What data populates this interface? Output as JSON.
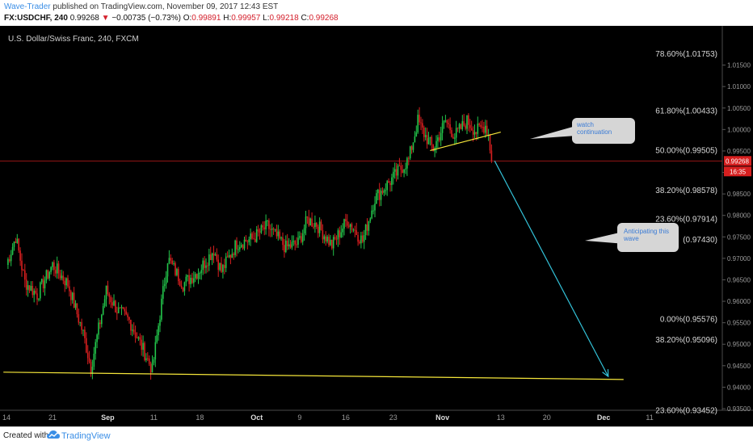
{
  "header": {
    "author": "Wave-Trader",
    "published_text": "published on TradingView.com, November 09, 2017 12:43 EST",
    "symbol": "FX:USDCHF, 240",
    "last": "0.99268",
    "change_arrow": "▼",
    "change": "−0.00735 (−0.73%)",
    "ohlc": [
      {
        "label": "O:",
        "value": "0.99891"
      },
      {
        "label": "H:",
        "value": "0.99957"
      },
      {
        "label": "L:",
        "value": "0.99218"
      },
      {
        "label": "C:",
        "value": "0.99268"
      }
    ]
  },
  "footer": {
    "created_with": "Created with",
    "brand": "TradingView",
    "logo_icon": "tradingview-cloud-icon"
  },
  "chart_data": {
    "type": "candlestick",
    "title": "U.S. Dollar/Swiss Franc, 240, FXCM",
    "ylim": [
      0.935,
      1.02
    ],
    "y_ticks": [
      "1.01500",
      "1.01000",
      "1.00500",
      "1.00000",
      "0.99500",
      "0.99000",
      "0.98500",
      "0.98000",
      "0.97500",
      "0.97000",
      "0.96500",
      "0.96000",
      "0.95500",
      "0.95000",
      "0.94500",
      "0.94000",
      "0.93500"
    ],
    "x_ticks": [
      {
        "label": "14",
        "idx": 0
      },
      {
        "label": "21",
        "idx": 30
      },
      {
        "label": "Sep",
        "idx": 66
      },
      {
        "label": "11",
        "idx": 96
      },
      {
        "label": "18",
        "idx": 126
      },
      {
        "label": "Oct",
        "idx": 163
      },
      {
        "label": "9",
        "idx": 191
      },
      {
        "label": "16",
        "idx": 221
      },
      {
        "label": "23",
        "idx": 252
      },
      {
        "label": "Nov",
        "idx": 284
      },
      {
        "label": "13",
        "idx": 322
      },
      {
        "label": "20",
        "idx": 352
      },
      {
        "label": "Dec",
        "idx": 389
      },
      {
        "label": "11",
        "idx": 419
      }
    ],
    "current_price": {
      "value": 0.99268,
      "label": "0.99268",
      "countdown": "16:35"
    },
    "fib_levels": [
      {
        "label": "78.60%(1.01753)",
        "value": 1.01753
      },
      {
        "label": "61.80%(1.00433)",
        "value": 1.00433
      },
      {
        "label": "50.00%(0.99505)",
        "value": 0.99505
      },
      {
        "label": "38.20%(0.98578)",
        "value": 0.98578
      },
      {
        "label": "23.60%(0.97914)",
        "value": 0.97914
      },
      {
        "label": "(0.97430)",
        "value": 0.9743
      },
      {
        "label": "0.00%(0.95576)",
        "value": 0.95576
      },
      {
        "label": "38.20%(0.95096)",
        "value": 0.95096
      },
      {
        "label": "23.60%(0.93452)",
        "value": 0.93452
      }
    ],
    "anchors": [
      {
        "idx": 0,
        "price": 0.9685
      },
      {
        "idx": 6,
        "price": 0.975
      },
      {
        "idx": 12,
        "price": 0.9645
      },
      {
        "idx": 20,
        "price": 0.9615
      },
      {
        "idx": 30,
        "price": 0.9685
      },
      {
        "idx": 40,
        "price": 0.964
      },
      {
        "idx": 50,
        "price": 0.9525
      },
      {
        "idx": 55,
        "price": 0.9445
      },
      {
        "idx": 65,
        "price": 0.9625
      },
      {
        "idx": 72,
        "price": 0.958
      },
      {
        "idx": 80,
        "price": 0.9555
      },
      {
        "idx": 90,
        "price": 0.948
      },
      {
        "idx": 95,
        "price": 0.944
      },
      {
        "idx": 105,
        "price": 0.97
      },
      {
        "idx": 115,
        "price": 0.964
      },
      {
        "idx": 125,
        "price": 0.967
      },
      {
        "idx": 135,
        "price": 0.972
      },
      {
        "idx": 140,
        "price": 0.967
      },
      {
        "idx": 150,
        "price": 0.9735
      },
      {
        "idx": 160,
        "price": 0.9745
      },
      {
        "idx": 170,
        "price": 0.9775
      },
      {
        "idx": 182,
        "price": 0.9725
      },
      {
        "idx": 190,
        "price": 0.9735
      },
      {
        "idx": 196,
        "price": 0.979
      },
      {
        "idx": 202,
        "price": 0.978
      },
      {
        "idx": 212,
        "price": 0.973
      },
      {
        "idx": 222,
        "price": 0.979
      },
      {
        "idx": 232,
        "price": 0.974
      },
      {
        "idx": 240,
        "price": 0.984
      },
      {
        "idx": 250,
        "price": 0.988
      },
      {
        "idx": 262,
        "price": 0.993
      },
      {
        "idx": 268,
        "price": 1.002
      },
      {
        "idx": 272,
        "price": 0.999
      },
      {
        "idx": 278,
        "price": 0.9955
      },
      {
        "idx": 286,
        "price": 1.002
      },
      {
        "idx": 292,
        "price": 0.9985
      },
      {
        "idx": 300,
        "price": 1.002
      },
      {
        "idx": 306,
        "price": 0.9995
      },
      {
        "idx": 312,
        "price": 1.001
      },
      {
        "idx": 314,
        "price": 0.9988
      },
      {
        "idx": 316,
        "price": 0.9927
      }
    ],
    "annotations": [
      {
        "text": "watch continuation",
        "lines": [
          "watch",
          "continuation"
        ]
      },
      {
        "text": "Anticipating this wave",
        "lines": [
          "Anticipating this",
          "wave"
        ]
      }
    ],
    "trendlines": [
      {
        "name": "support-line",
        "color": "#f5e63a",
        "from": {
          "idx": -2,
          "price": 0.9435
        },
        "to": {
          "idx": 402,
          "price": 0.9418
        }
      },
      {
        "name": "wedge-line",
        "color": "#f5e63a",
        "from": {
          "idx": 276,
          "price": 0.9951
        },
        "to": {
          "idx": 322,
          "price": 0.9994
        }
      },
      {
        "name": "projection-line",
        "color": "#33c2d8",
        "from": {
          "idx": 318,
          "price": 0.9927
        },
        "to": {
          "idx": 392,
          "price": 0.9425
        }
      }
    ],
    "colors": {
      "background": "#000000",
      "up": "#22c34a",
      "down": "#d61f1f",
      "price_line": "#c81e1e",
      "fib_text": "#d8d8d8",
      "axis_text": "#9a9a9a",
      "note_bg": "#d6d6d6",
      "note_text": "#3a7bd5"
    },
    "grid": false
  }
}
